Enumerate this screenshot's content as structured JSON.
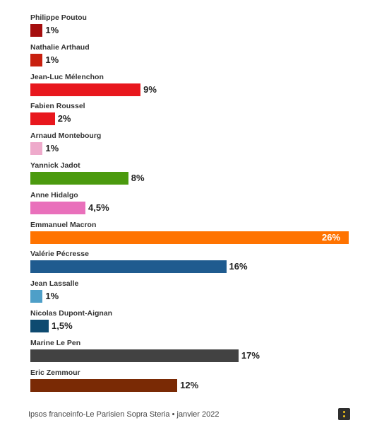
{
  "chart_data": {
    "type": "bar",
    "orientation": "horizontal",
    "title": "",
    "xlabel": "",
    "ylabel": "",
    "xlim": [
      0,
      26
    ],
    "grid": false,
    "categories": [
      "Philippe Poutou",
      "Nathalie Arthaud",
      "Jean-Luc Mélenchon",
      "Fabien Roussel",
      "Arnaud Montebourg",
      "Yannick Jadot",
      "Anne Hidalgo",
      "Emmanuel Macron",
      "Valérie Pécresse",
      "Jean Lassalle",
      "Nicolas Dupont-Aignan",
      "Marine Le Pen",
      "Eric Zemmour"
    ],
    "values": [
      1,
      1,
      9,
      2,
      1,
      8,
      4.5,
      26,
      16,
      1,
      1.5,
      17,
      12
    ],
    "value_labels": [
      "1%",
      "1%",
      "9%",
      "2%",
      "1%",
      "8%",
      "4,5%",
      "26%",
      "16%",
      "1%",
      "1,5%",
      "17%",
      "12%"
    ],
    "colors": [
      "#a50e0e",
      "#c8200f",
      "#e8171d",
      "#e8171d",
      "#eeaacb",
      "#4b9a0e",
      "#e970bb",
      "#ff7300",
      "#1f5b8f",
      "#4e9fc8",
      "#0e4a70",
      "#424242",
      "#7a2a05"
    ]
  },
  "footer": {
    "source": "Ipsos franceinfo-Le Parisien Sopra Steria • janvier 2022"
  },
  "menu": {
    "icon": "vertical-dots-icon"
  }
}
